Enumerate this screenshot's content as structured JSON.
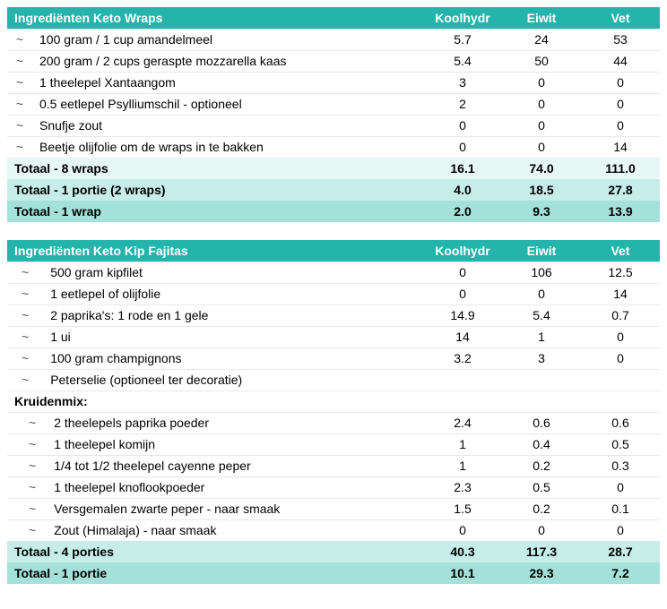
{
  "colors": {
    "header_bg": "#24b4ac",
    "header_fg": "#ffffff",
    "total_bg_0": "#e6f7f5",
    "total_bg_1": "#c6ede8",
    "total_bg_2": "#a3e1da",
    "row_border": "#e8e8e8",
    "bullet_color": "#555555"
  },
  "bullet_char": "~",
  "columns": [
    "Koolhydr",
    "Eiwit",
    "Vet"
  ],
  "tables": [
    {
      "title": "Ingrediënten Keto Wraps",
      "rows": [
        {
          "type": "ingredient",
          "name": "100 gram / 1 cup amandelmeel",
          "vals": [
            "5.7",
            "24",
            "53"
          ]
        },
        {
          "type": "ingredient",
          "name": "200 gram / 2 cups geraspte mozzarella kaas",
          "vals": [
            "5.4",
            "50",
            "44"
          ]
        },
        {
          "type": "ingredient",
          "name": "1 theelepel Xantaangom",
          "vals": [
            "3",
            "0",
            "0"
          ]
        },
        {
          "type": "ingredient",
          "name": "0.5 eetlepel Psylliumschil - optioneel",
          "vals": [
            "2",
            "0",
            "0"
          ]
        },
        {
          "type": "ingredient",
          "name": "Snufje zout",
          "vals": [
            "0",
            "0",
            "0"
          ]
        },
        {
          "type": "ingredient",
          "name": "Beetje olijfolie om de wraps in te bakken",
          "vals": [
            "0",
            "0",
            "14"
          ]
        }
      ],
      "totals": [
        {
          "label": "Totaal - 8 wraps",
          "vals": [
            "16.1",
            "74.0",
            "111.0"
          ],
          "shade": 0
        },
        {
          "label": "Totaal - 1 portie (2 wraps)",
          "vals": [
            "4.0",
            "18.5",
            "27.8"
          ],
          "shade": 1
        },
        {
          "label": "Totaal - 1 wrap",
          "vals": [
            "2.0",
            "9.3",
            "13.9"
          ],
          "shade": 2
        }
      ]
    },
    {
      "title": "Ingrediënten Keto Kip Fajitas",
      "rows": [
        {
          "type": "ingredient",
          "name": "500 gram kipfilet",
          "vals": [
            "0",
            "106",
            "12.5"
          ]
        },
        {
          "type": "ingredient",
          "name": "1 eetlepel of olijfolie",
          "vals": [
            "0",
            "0",
            "14"
          ]
        },
        {
          "type": "ingredient",
          "name": "2 paprika's: 1 rode en 1 gele",
          "vals": [
            "14.9",
            "5.4",
            "0.7"
          ]
        },
        {
          "type": "ingredient",
          "name": "1 ui",
          "vals": [
            "14",
            "1",
            "0"
          ]
        },
        {
          "type": "ingredient",
          "name": "100 gram champignons",
          "vals": [
            "3.2",
            "3",
            "0"
          ]
        },
        {
          "type": "ingredient",
          "name": "Peterselie (optioneel ter decoratie)",
          "vals": [
            "",
            "",
            ""
          ]
        },
        {
          "type": "subheader",
          "name": "Kruidenmix:"
        },
        {
          "type": "ingredient",
          "indent": true,
          "name": "2 theelepels paprika poeder",
          "vals": [
            "2.4",
            "0.6",
            "0.6"
          ]
        },
        {
          "type": "ingredient",
          "indent": true,
          "name": "1 theelepel komijn",
          "vals": [
            "1",
            "0.4",
            "0.5"
          ]
        },
        {
          "type": "ingredient",
          "indent": true,
          "name": "1/4 tot 1/2 theelepel cayenne peper",
          "vals": [
            "1",
            "0.2",
            "0.3"
          ]
        },
        {
          "type": "ingredient",
          "indent": true,
          "name": "1 theelepel knoflookpoeder",
          "vals": [
            "2.3",
            "0.5",
            "0"
          ]
        },
        {
          "type": "ingredient",
          "indent": true,
          "name": "Versgemalen zwarte peper - naar smaak",
          "vals": [
            "1.5",
            "0.2",
            "0.1"
          ]
        },
        {
          "type": "ingredient",
          "indent": true,
          "name": "Zout (Himalaja) - naar smaak",
          "vals": [
            "0",
            "0",
            "0"
          ]
        }
      ],
      "totals": [
        {
          "label": "Totaal - 4 porties",
          "vals": [
            "40.3",
            "117.3",
            "28.7"
          ],
          "shade": 1
        },
        {
          "label": "Totaal - 1 portie",
          "vals": [
            "10.1",
            "29.3",
            "7.2"
          ],
          "shade": 2
        }
      ]
    }
  ]
}
